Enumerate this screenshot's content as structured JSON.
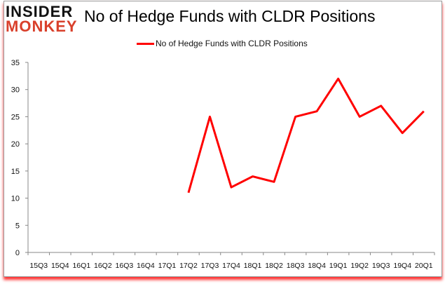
{
  "logo": {
    "line1": "INSIDER",
    "line2": "MONKEY"
  },
  "colors": {
    "series": "#ff0000",
    "axis": "#888888"
  },
  "chart_data": {
    "type": "line",
    "title": "No of Hedge Funds with CLDR Positions",
    "legend": "top",
    "grid": false,
    "categories": [
      "15Q3",
      "15Q4",
      "16Q1",
      "16Q2",
      "16Q3",
      "16Q4",
      "17Q1",
      "17Q2",
      "17Q3",
      "17Q4",
      "18Q1",
      "18Q2",
      "18Q3",
      "18Q4",
      "19Q1",
      "19Q2",
      "19Q3",
      "19Q4",
      "20Q1"
    ],
    "ylim": [
      0,
      35
    ],
    "yticks": [
      "0",
      "5",
      "10",
      "15",
      "20",
      "25",
      "30",
      "35"
    ],
    "series": [
      {
        "name": "No of Hedge Funds with CLDR Positions",
        "values": [
          null,
          null,
          null,
          null,
          null,
          null,
          null,
          11,
          25,
          12,
          14,
          13,
          25,
          26,
          32,
          25,
          27,
          22,
          26
        ]
      }
    ]
  }
}
